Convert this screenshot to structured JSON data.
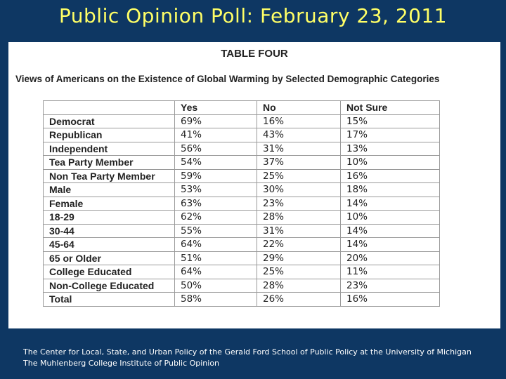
{
  "slide": {
    "title": "Public Opinion Poll: February 23, 2011"
  },
  "table": {
    "heading": "TABLE FOUR",
    "subheading": "Views of Americans on the Existence of Global Warming by Selected Demographic Categories",
    "columns": [
      "",
      "Yes",
      "No",
      "Not Sure"
    ],
    "rows": [
      {
        "category": "Democrat",
        "yes": "69%",
        "no": "16%",
        "not_sure": "15%"
      },
      {
        "category": "Republican",
        "yes": "41%",
        "no": "43%",
        "not_sure": "17%"
      },
      {
        "category": "Independent",
        "yes": "56%",
        "no": "31%",
        "not_sure": "13%"
      },
      {
        "category": "Tea Party Member",
        "yes": "54%",
        "no": "37%",
        "not_sure": "10%"
      },
      {
        "category": "Non Tea Party Member",
        "yes": "59%",
        "no": "25%",
        "not_sure": "16%"
      },
      {
        "category": "Male",
        "yes": "53%",
        "no": "30%",
        "not_sure": "18%"
      },
      {
        "category": "Female",
        "yes": "63%",
        "no": "23%",
        "not_sure": "14%"
      },
      {
        "category": "18-29",
        "yes": "62%",
        "no": "28%",
        "not_sure": "10%"
      },
      {
        "category": "30-44",
        "yes": "55%",
        "no": "31%",
        "not_sure": "14%"
      },
      {
        "category": "45-64",
        "yes": "64%",
        "no": "22%",
        "not_sure": "14%"
      },
      {
        "category": "65 or Older",
        "yes": "51%",
        "no": "29%",
        "not_sure": "20%"
      },
      {
        "category": "College Educated",
        "yes": "64%",
        "no": "25%",
        "not_sure": "11%"
      },
      {
        "category": "Non-College Educated",
        "yes": "50%",
        "no": "28%",
        "not_sure": "23%"
      },
      {
        "category": "Total",
        "yes": "58%",
        "no": "26%",
        "not_sure": "16%"
      }
    ]
  },
  "source": {
    "text": "The Center for Local, State, and Urban Policy of the Gerald Ford School of Public Policy at the University of Michigan The Muhlenberg College Institute of Public Opinion"
  }
}
